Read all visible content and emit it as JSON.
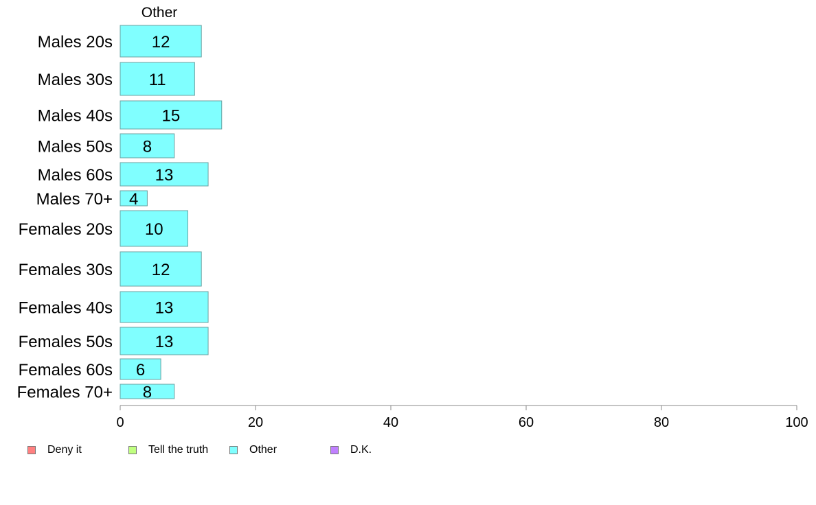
{
  "chart_data": {
    "type": "bar",
    "orientation": "horizontal",
    "title": "Other",
    "categories": [
      "Males 20s",
      "Males 30s",
      "Males 40s",
      "Males 50s",
      "Males 60s",
      "Males 70+",
      "Females 20s",
      "Females 30s",
      "Females 40s",
      "Females 50s",
      "Females 60s",
      "Females 70+"
    ],
    "series": [
      {
        "name": "Other",
        "color": "#80ffff",
        "values": [
          12,
          11,
          15,
          8,
          13,
          4,
          10,
          12,
          13,
          13,
          6,
          8
        ]
      }
    ],
    "xlim": [
      0,
      100
    ],
    "xticks": [
      0,
      20,
      40,
      60,
      80,
      100
    ],
    "grid": false,
    "legend": {
      "placement": "bottom",
      "entries": [
        {
          "name": "Deny it",
          "color": "#ff8080"
        },
        {
          "name": "Tell the truth",
          "color": "#c0ff80"
        },
        {
          "name": "Other",
          "color": "#80ffff"
        },
        {
          "name": "D.K.",
          "color": "#c080ff"
        }
      ]
    }
  }
}
